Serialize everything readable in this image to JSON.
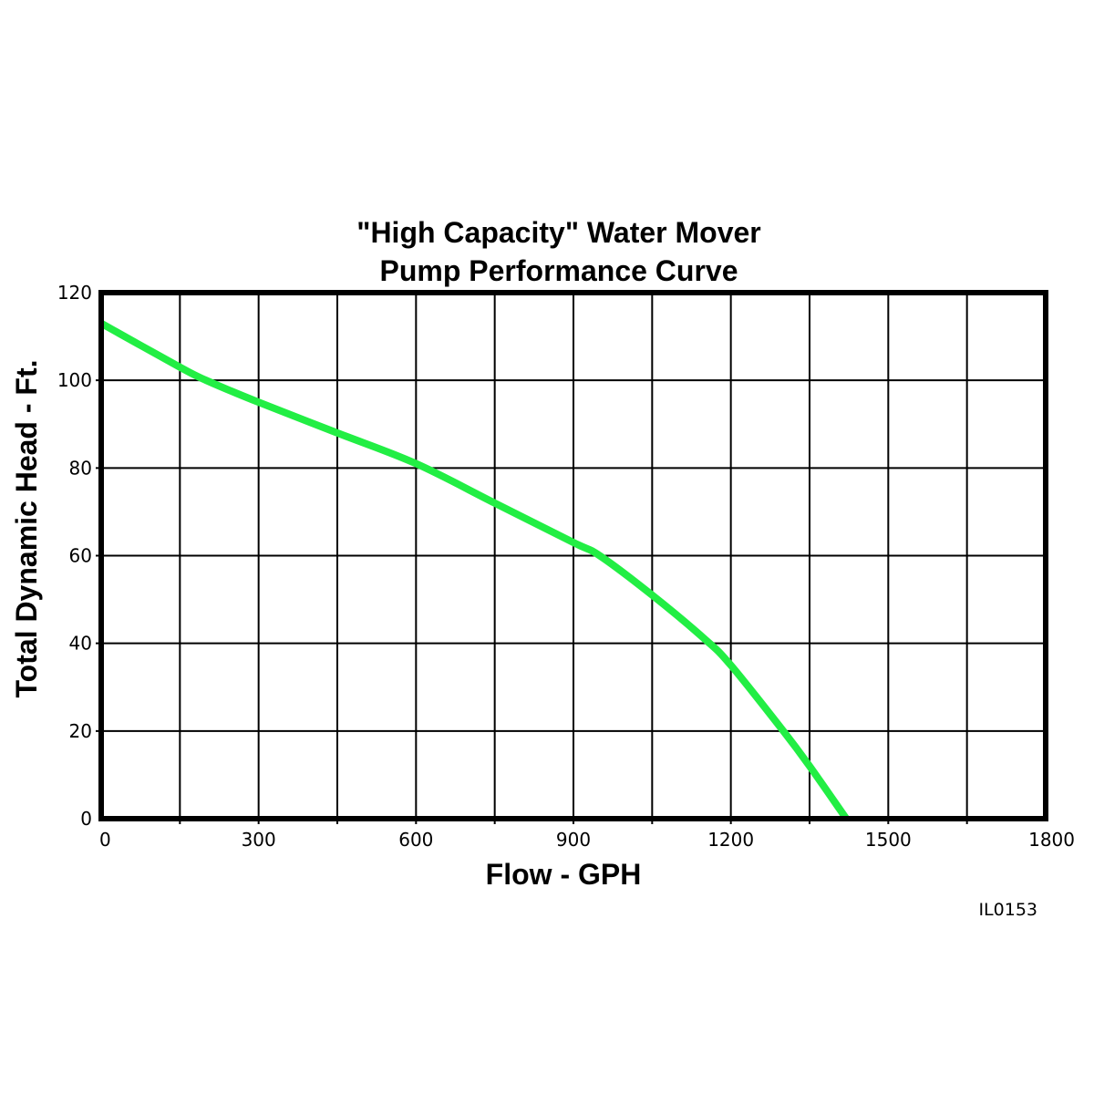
{
  "chart_data": {
    "type": "line",
    "title_line1": "\"High Capacity\" Water Mover",
    "title_line2": "Pump Performance Curve",
    "xlabel": "Flow - GPH",
    "ylabel": "Total Dynamic Head - Ft.",
    "xlim": [
      0,
      1800
    ],
    "ylim": [
      0,
      120
    ],
    "x_ticks": [
      0,
      300,
      600,
      900,
      1200,
      1500,
      1800
    ],
    "y_ticks": [
      0,
      20,
      40,
      60,
      80,
      100,
      120
    ],
    "x_grid_step": 150,
    "y_grid_step": 20,
    "grid": true,
    "series": [
      {
        "color": "#22ee44",
        "x": [
          0,
          150,
          200,
          300,
          450,
          600,
          750,
          900,
          950,
          1050,
          1150,
          1200,
          1300,
          1350,
          1420
        ],
        "y": [
          113,
          103,
          100,
          95,
          88,
          81,
          72,
          63,
          60,
          51,
          41,
          35,
          20,
          12,
          0
        ]
      }
    ]
  },
  "figure_id": "IL0153"
}
